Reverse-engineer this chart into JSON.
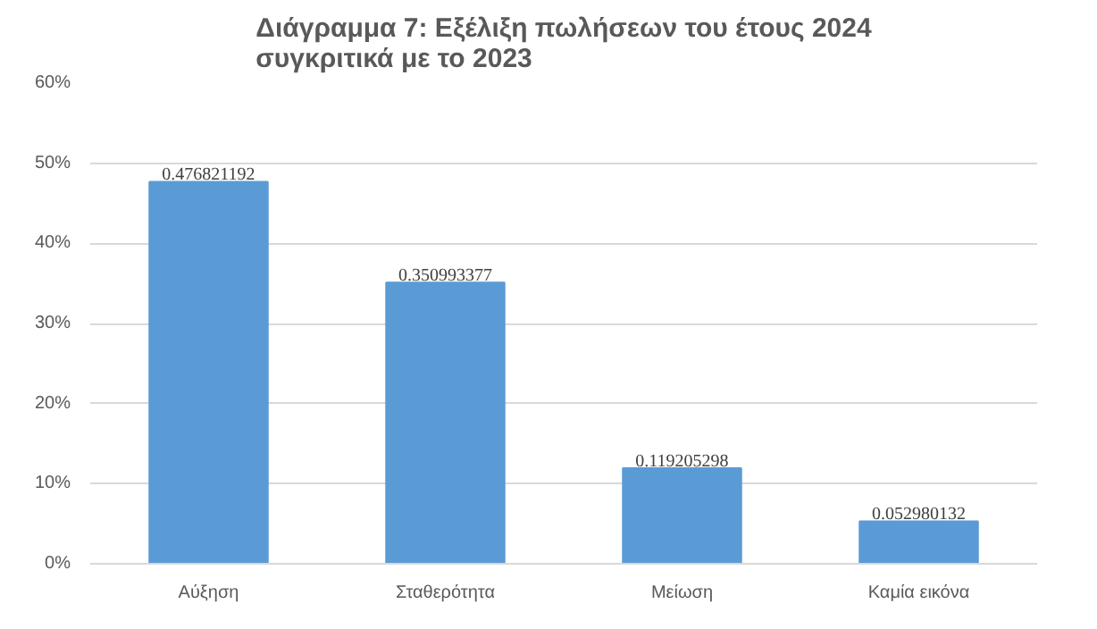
{
  "chart_data": {
    "type": "bar",
    "title": "Διάγραμμα 7: Εξέλιξη πωλήσεων του έτους 2024\nσυγκριτικά με το 2023",
    "categories": [
      "Αύξηση",
      "Σταθερότητα",
      "Μείωση",
      "Καμία εικόνα"
    ],
    "values": [
      0.476821192,
      0.350993377,
      0.119205298,
      0.052980132
    ],
    "color": "#5b9bd5",
    "ylim": [
      0,
      0.6
    ],
    "yticks": [
      {
        "value": 0,
        "label": "0%"
      },
      {
        "value": 0.1,
        "label": "10%"
      },
      {
        "value": 0.2,
        "label": "20%"
      },
      {
        "value": 0.3,
        "label": "30%"
      },
      {
        "value": 0.4,
        "label": "40%"
      },
      {
        "value": 0.5,
        "label": "50%"
      },
      {
        "value": 0.6,
        "label": "60%"
      }
    ],
    "grid": "y",
    "data_labels": true
  }
}
